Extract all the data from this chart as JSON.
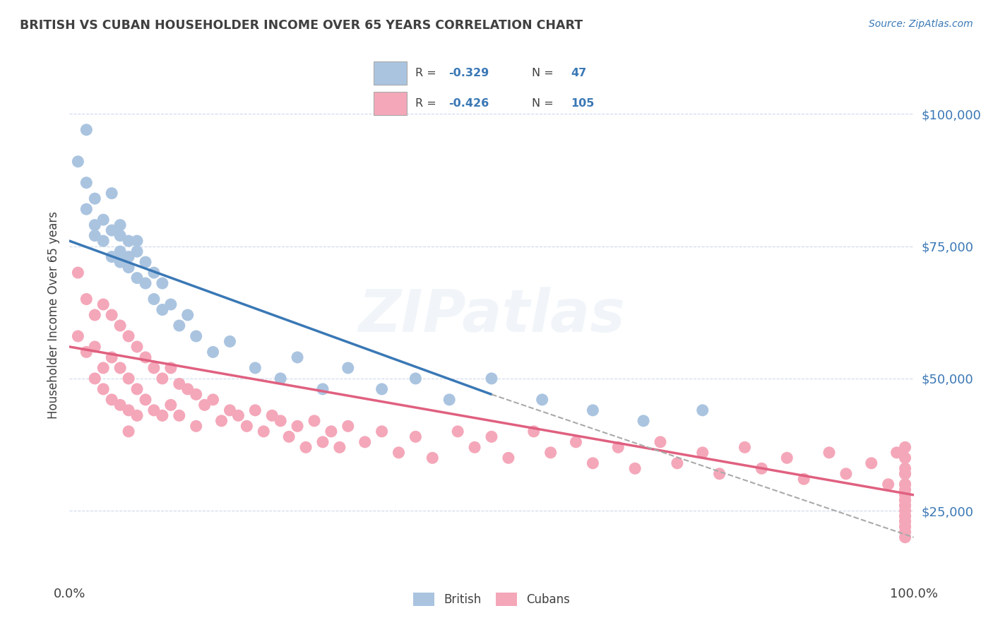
{
  "title": "BRITISH VS CUBAN HOUSEHOLDER INCOME OVER 65 YEARS CORRELATION CHART",
  "source": "Source: ZipAtlas.com",
  "ylabel": "Householder Income Over 65 years",
  "ytick_labels": [
    "$25,000",
    "$50,000",
    "$75,000",
    "$100,000"
  ],
  "ytick_values": [
    25000,
    50000,
    75000,
    100000
  ],
  "xlim": [
    0,
    1
  ],
  "ylim": [
    12000,
    112000
  ],
  "british_color": "#aac4e0",
  "cuban_color": "#f4a7b9",
  "british_line_color": "#3a78b5",
  "cuban_line_color": "#e06080",
  "dashed_line_color": "#aaaaaa",
  "watermark": "ZIPatlas",
  "background_color": "#ffffff",
  "grid_color": "#cdd8ea",
  "title_color": "#404040",
  "source_color": "#3a78b5",
  "british_scatter_x": [
    0.01,
    0.02,
    0.02,
    0.02,
    0.03,
    0.03,
    0.03,
    0.04,
    0.04,
    0.05,
    0.05,
    0.05,
    0.06,
    0.06,
    0.06,
    0.06,
    0.07,
    0.07,
    0.07,
    0.08,
    0.08,
    0.08,
    0.09,
    0.09,
    0.1,
    0.1,
    0.11,
    0.11,
    0.12,
    0.13,
    0.14,
    0.15,
    0.17,
    0.19,
    0.22,
    0.25,
    0.27,
    0.3,
    0.33,
    0.37,
    0.41,
    0.45,
    0.5,
    0.56,
    0.62,
    0.68,
    0.75
  ],
  "british_scatter_y": [
    91000,
    87000,
    82000,
    97000,
    79000,
    84000,
    77000,
    80000,
    76000,
    78000,
    73000,
    85000,
    77000,
    72000,
    79000,
    74000,
    76000,
    71000,
    73000,
    74000,
    69000,
    76000,
    72000,
    68000,
    70000,
    65000,
    68000,
    63000,
    64000,
    60000,
    62000,
    58000,
    55000,
    57000,
    52000,
    50000,
    54000,
    48000,
    52000,
    48000,
    50000,
    46000,
    50000,
    46000,
    44000,
    42000,
    44000
  ],
  "cuban_scatter_x": [
    0.01,
    0.01,
    0.02,
    0.02,
    0.03,
    0.03,
    0.03,
    0.04,
    0.04,
    0.04,
    0.05,
    0.05,
    0.05,
    0.06,
    0.06,
    0.06,
    0.07,
    0.07,
    0.07,
    0.07,
    0.08,
    0.08,
    0.08,
    0.09,
    0.09,
    0.1,
    0.1,
    0.11,
    0.11,
    0.12,
    0.12,
    0.13,
    0.13,
    0.14,
    0.15,
    0.15,
    0.16,
    0.17,
    0.18,
    0.19,
    0.2,
    0.21,
    0.22,
    0.23,
    0.24,
    0.25,
    0.26,
    0.27,
    0.28,
    0.29,
    0.3,
    0.31,
    0.32,
    0.33,
    0.35,
    0.37,
    0.39,
    0.41,
    0.43,
    0.46,
    0.48,
    0.5,
    0.52,
    0.55,
    0.57,
    0.6,
    0.62,
    0.65,
    0.67,
    0.7,
    0.72,
    0.75,
    0.77,
    0.8,
    0.82,
    0.85,
    0.87,
    0.9,
    0.92,
    0.95,
    0.97,
    0.98,
    0.99,
    0.99,
    0.99,
    0.99,
    0.99,
    0.99,
    0.99,
    0.99,
    0.99,
    0.99,
    0.99,
    0.99,
    0.99,
    0.99,
    0.99,
    0.99,
    0.99,
    0.99,
    0.99,
    0.99,
    0.99,
    0.99,
    0.99
  ],
  "cuban_scatter_y": [
    70000,
    58000,
    65000,
    55000,
    62000,
    56000,
    50000,
    64000,
    52000,
    48000,
    62000,
    54000,
    46000,
    60000,
    52000,
    45000,
    58000,
    50000,
    44000,
    40000,
    56000,
    48000,
    43000,
    54000,
    46000,
    52000,
    44000,
    50000,
    43000,
    52000,
    45000,
    49000,
    43000,
    48000,
    47000,
    41000,
    45000,
    46000,
    42000,
    44000,
    43000,
    41000,
    44000,
    40000,
    43000,
    42000,
    39000,
    41000,
    37000,
    42000,
    38000,
    40000,
    37000,
    41000,
    38000,
    40000,
    36000,
    39000,
    35000,
    40000,
    37000,
    39000,
    35000,
    40000,
    36000,
    38000,
    34000,
    37000,
    33000,
    38000,
    34000,
    36000,
    32000,
    37000,
    33000,
    35000,
    31000,
    36000,
    32000,
    34000,
    30000,
    36000,
    33000,
    35000,
    30000,
    32000,
    28000,
    30000,
    26000,
    28000,
    25000,
    29000,
    24000,
    27000,
    23000,
    26000,
    22000,
    24000,
    21000,
    23000,
    20000,
    22000,
    27000,
    32000,
    37000
  ],
  "british_line_x": [
    0.0,
    0.5
  ],
  "british_line_y": [
    76000,
    47000
  ],
  "cuban_line_x": [
    0.0,
    1.0
  ],
  "cuban_line_y": [
    56000,
    28000
  ],
  "dashed_line_x": [
    0.5,
    1.0
  ],
  "dashed_line_y": [
    47000,
    20000
  ]
}
